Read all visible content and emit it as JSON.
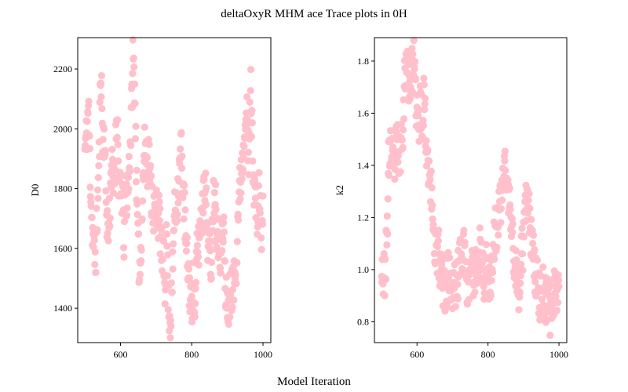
{
  "figure": {
    "title": "deltaOxyR MHM ace Trace plots in 0H",
    "xlabel": "Model Iteration"
  },
  "chart_data": [
    {
      "type": "scatter",
      "ylabel": "D0",
      "xlim": [
        480,
        1022
      ],
      "ylim": [
        1285,
        2305
      ],
      "xticks": [
        600,
        800,
        1000
      ],
      "yticks": [
        1400,
        1600,
        1800,
        2000,
        2200
      ],
      "marker_color": "#ffc0cb",
      "anchors": [
        [
          500,
          1930
        ],
        [
          505,
          1980
        ],
        [
          510,
          2080
        ],
        [
          515,
          1860
        ],
        [
          520,
          1690
        ],
        [
          525,
          1600
        ],
        [
          530,
          1560
        ],
        [
          535,
          1720
        ],
        [
          540,
          1900
        ],
        [
          545,
          2230
        ],
        [
          550,
          1960
        ],
        [
          555,
          1980
        ],
        [
          560,
          1760
        ],
        [
          565,
          1640
        ],
        [
          570,
          1730
        ],
        [
          575,
          1900
        ],
        [
          580,
          1800
        ],
        [
          585,
          1860
        ],
        [
          590,
          2090
        ],
        [
          595,
          1840
        ],
        [
          600,
          1760
        ],
        [
          605,
          1790
        ],
        [
          610,
          1630
        ],
        [
          615,
          1810
        ],
        [
          620,
          1760
        ],
        [
          625,
          1900
        ],
        [
          630,
          2020
        ],
        [
          635,
          2240
        ],
        [
          640,
          2150
        ],
        [
          645,
          1830
        ],
        [
          650,
          1580
        ],
        [
          655,
          1530
        ],
        [
          660,
          1700
        ],
        [
          665,
          1880
        ],
        [
          670,
          1960
        ],
        [
          675,
          1880
        ],
        [
          680,
          1920
        ],
        [
          685,
          1800
        ],
        [
          690,
          1760
        ],
        [
          695,
          1700
        ],
        [
          700,
          1760
        ],
        [
          705,
          1720
        ],
        [
          710,
          1690
        ],
        [
          715,
          1600
        ],
        [
          720,
          1560
        ],
        [
          725,
          1480
        ],
        [
          730,
          1640
        ],
        [
          735,
          1420
        ],
        [
          740,
          1360
        ],
        [
          745,
          1460
        ],
        [
          750,
          1700
        ],
        [
          755,
          1740
        ],
        [
          760,
          1780
        ],
        [
          765,
          1850
        ],
        [
          770,
          1940
        ],
        [
          775,
          1830
        ],
        [
          780,
          1720
        ],
        [
          785,
          1580
        ],
        [
          790,
          1530
        ],
        [
          795,
          1450
        ],
        [
          800,
          1400
        ],
        [
          805,
          1480
        ],
        [
          810,
          1380
        ],
        [
          815,
          1600
        ],
        [
          820,
          1610
        ],
        [
          825,
          1700
        ],
        [
          830,
          1720
        ],
        [
          835,
          1880
        ],
        [
          840,
          1760
        ],
        [
          845,
          1640
        ],
        [
          850,
          1580
        ],
        [
          855,
          1560
        ],
        [
          860,
          1760
        ],
        [
          865,
          1820
        ],
        [
          870,
          1680
        ],
        [
          875,
          1640
        ],
        [
          880,
          1590
        ],
        [
          885,
          1610
        ],
        [
          890,
          1680
        ],
        [
          895,
          1420
        ],
        [
          900,
          1440
        ],
        [
          905,
          1380
        ],
        [
          910,
          1480
        ],
        [
          915,
          1460
        ],
        [
          920,
          1500
        ],
        [
          925,
          1560
        ],
        [
          930,
          1720
        ],
        [
          935,
          1800
        ],
        [
          940,
          1880
        ],
        [
          945,
          1920
        ],
        [
          950,
          2080
        ],
        [
          955,
          2030
        ],
        [
          960,
          1860
        ],
        [
          965,
          2170
        ],
        [
          970,
          1960
        ],
        [
          975,
          1820
        ],
        [
          980,
          1750
        ],
        [
          985,
          1700
        ],
        [
          990,
          1800
        ],
        [
          995,
          1640
        ],
        [
          1000,
          1710
        ]
      ],
      "n_points": 501,
      "seed": 11
    },
    {
      "type": "scatter",
      "ylabel": "k2",
      "xlim": [
        480,
        1022
      ],
      "ylim": [
        0.72,
        1.89
      ],
      "xticks": [
        600,
        800,
        1000
      ],
      "yticks": [
        0.8,
        1.0,
        1.2,
        1.4,
        1.6,
        1.8
      ],
      "marker_color": "#ffc0cb",
      "anchors": [
        [
          500,
          1.05
        ],
        [
          505,
          0.96
        ],
        [
          510,
          1.0
        ],
        [
          515,
          1.1
        ],
        [
          520,
          1.4
        ],
        [
          525,
          1.48
        ],
        [
          530,
          1.42
        ],
        [
          535,
          1.36
        ],
        [
          540,
          1.46
        ],
        [
          545,
          1.48
        ],
        [
          550,
          1.42
        ],
        [
          555,
          1.5
        ],
        [
          560,
          1.56
        ],
        [
          565,
          1.72
        ],
        [
          570,
          1.8
        ],
        [
          575,
          1.76
        ],
        [
          580,
          1.7
        ],
        [
          585,
          1.74
        ],
        [
          590,
          1.82
        ],
        [
          595,
          1.68
        ],
        [
          600,
          1.6
        ],
        [
          605,
          1.52
        ],
        [
          610,
          1.64
        ],
        [
          615,
          1.56
        ],
        [
          620,
          1.7
        ],
        [
          625,
          1.5
        ],
        [
          630,
          1.44
        ],
        [
          635,
          1.38
        ],
        [
          640,
          1.3
        ],
        [
          645,
          1.2
        ],
        [
          650,
          1.1
        ],
        [
          655,
          1.04
        ],
        [
          660,
          1.08
        ],
        [
          665,
          0.98
        ],
        [
          670,
          1.0
        ],
        [
          675,
          0.92
        ],
        [
          680,
          0.9
        ],
        [
          685,
          0.96
        ],
        [
          690,
          1.0
        ],
        [
          695,
          0.94
        ],
        [
          700,
          0.88
        ],
        [
          705,
          0.96
        ],
        [
          710,
          0.92
        ],
        [
          715,
          0.98
        ],
        [
          720,
          1.02
        ],
        [
          725,
          1.08
        ],
        [
          730,
          1.1
        ],
        [
          735,
          1.02
        ],
        [
          740,
          0.92
        ],
        [
          745,
          0.94
        ],
        [
          750,
          1.04
        ],
        [
          755,
          1.0
        ],
        [
          760,
          0.98
        ],
        [
          765,
          1.02
        ],
        [
          770,
          1.04
        ],
        [
          775,
          1.08
        ],
        [
          780,
          1.06
        ],
        [
          785,
          1.0
        ],
        [
          790,
          0.96
        ],
        [
          795,
          1.02
        ],
        [
          800,
          0.98
        ],
        [
          805,
          0.96
        ],
        [
          810,
          1.0
        ],
        [
          815,
          1.08
        ],
        [
          820,
          1.14
        ],
        [
          825,
          1.16
        ],
        [
          830,
          1.2
        ],
        [
          835,
          1.24
        ],
        [
          840,
          1.3
        ],
        [
          845,
          1.4
        ],
        [
          850,
          1.38
        ],
        [
          855,
          1.3
        ],
        [
          860,
          1.26
        ],
        [
          865,
          1.18
        ],
        [
          870,
          1.1
        ],
        [
          875,
          1.04
        ],
        [
          880,
          0.98
        ],
        [
          885,
          0.92
        ],
        [
          890,
          0.96
        ],
        [
          895,
          1.06
        ],
        [
          900,
          1.1
        ],
        [
          905,
          1.2
        ],
        [
          910,
          1.3
        ],
        [
          915,
          1.22
        ],
        [
          920,
          1.14
        ],
        [
          925,
          1.08
        ],
        [
          930,
          1.02
        ],
        [
          935,
          0.98
        ],
        [
          940,
          0.94
        ],
        [
          945,
          0.9
        ],
        [
          950,
          0.88
        ],
        [
          955,
          0.92
        ],
        [
          960,
          0.9
        ],
        [
          965,
          0.86
        ],
        [
          970,
          0.88
        ],
        [
          975,
          0.84
        ],
        [
          980,
          0.86
        ],
        [
          985,
          0.9
        ],
        [
          990,
          0.92
        ],
        [
          995,
          0.94
        ],
        [
          1000,
          0.96
        ]
      ],
      "n_points": 501,
      "seed": 23
    }
  ]
}
